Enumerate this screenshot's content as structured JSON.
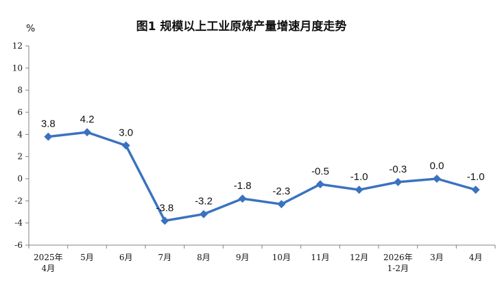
{
  "chart_data": {
    "type": "line",
    "title": "图1  规模以上工业原煤产量增速月度走势",
    "unit": "%",
    "categories": [
      [
        "2025年",
        "4月"
      ],
      [
        "5月"
      ],
      [
        "6月"
      ],
      [
        "7月"
      ],
      [
        "8月"
      ],
      [
        "9月"
      ],
      [
        "10月"
      ],
      [
        "11月"
      ],
      [
        "12月"
      ],
      [
        "2026年",
        "1-2月"
      ],
      [
        "3月"
      ],
      [
        "4月"
      ]
    ],
    "values": [
      3.8,
      4.2,
      3.0,
      -3.8,
      -3.2,
      -1.8,
      -2.3,
      -0.5,
      -1.0,
      -0.3,
      0.0,
      -1.0
    ],
    "value_labels": [
      "3.8",
      "4.2",
      "3.0",
      "-3.8",
      "-3.2",
      "-1.8",
      "-2.3",
      "-0.5",
      "-1.0",
      "-0.3",
      "0.0",
      "-1.0"
    ],
    "ylim": [
      -6,
      12
    ],
    "yticks": [
      12,
      10,
      8,
      6,
      4,
      2,
      0,
      -2,
      -4,
      -6
    ],
    "grid": false,
    "line_color": "#3a72c0",
    "marker": "diamond"
  }
}
